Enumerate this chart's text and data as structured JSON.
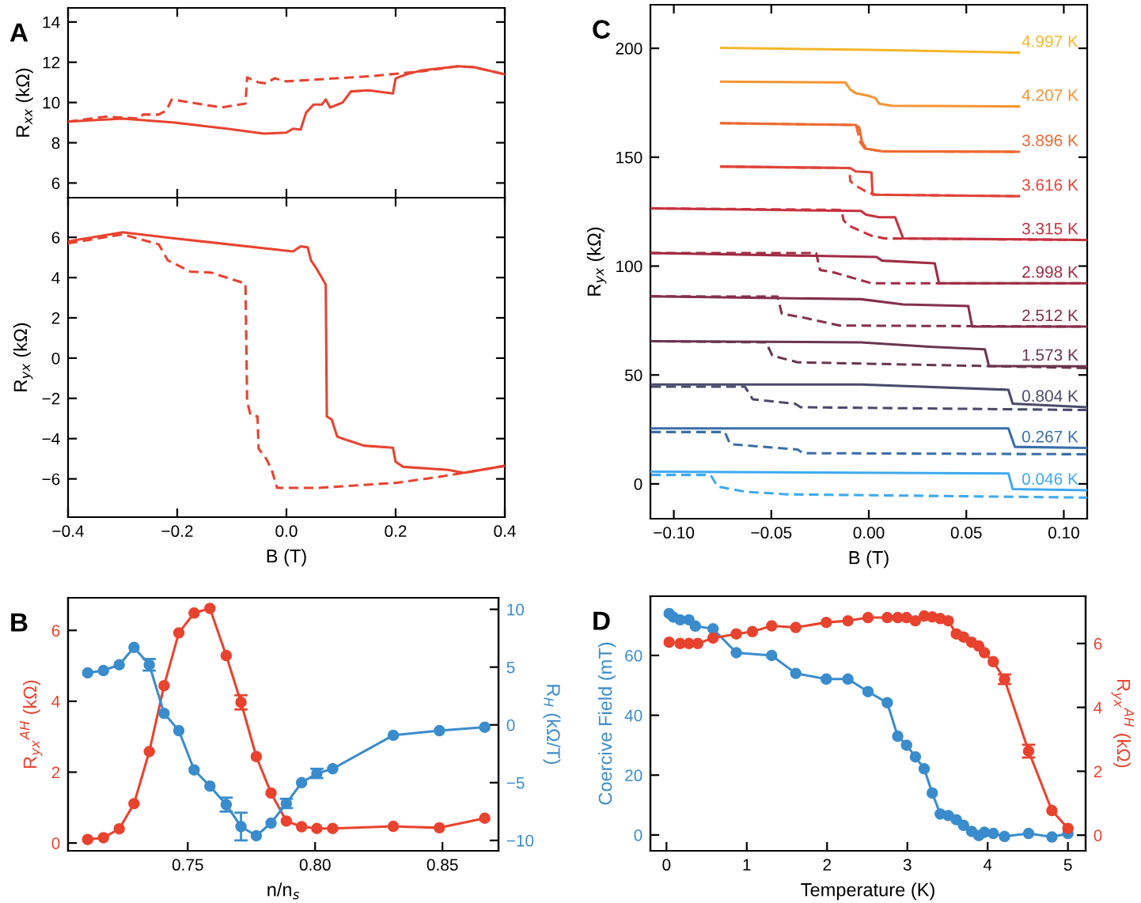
{
  "chart_data": [
    {
      "type": "line",
      "title": "A",
      "ylabel": "R$_{xx}$ (kΩ)",
      "tick_labels": "y",
      "xlim": [
        -0.4,
        0.4
      ],
      "xticks": [
        {
          "value": -0.4,
          "label": null
        },
        {
          "value": -0.2,
          "label": null
        },
        {
          "value": 0.0,
          "label": null
        },
        {
          "value": 0.2,
          "label": null
        },
        {
          "value": 0.4,
          "label": null
        }
      ],
      "ylim": [
        5.27,
        14.7
      ],
      "yticks": [
        6,
        8,
        10,
        12,
        14
      ],
      "series": [
        {
          "color": "#e8432f",
          "line_style": "solid",
          "x": [
            -0.4,
            -0.3,
            -0.205,
            -0.109,
            -0.041,
            0.0,
            0.012,
            0.026,
            0.036,
            0.05,
            0.065,
            0.072,
            0.08,
            0.103,
            0.118,
            0.151,
            0.195,
            0.2,
            0.22,
            0.248,
            0.315,
            0.344,
            0.4
          ],
          "values": [
            9.05,
            9.2,
            9.0,
            8.7,
            8.45,
            8.5,
            8.7,
            8.65,
            9.5,
            9.9,
            9.9,
            10.15,
            9.75,
            10.0,
            10.55,
            10.6,
            10.45,
            11.2,
            11.4,
            11.6,
            11.8,
            11.75,
            11.4
          ]
        },
        {
          "color": "#e8432f",
          "line_style": "dashed",
          "x": [
            -0.4,
            -0.33,
            -0.27,
            -0.263,
            -0.234,
            -0.22,
            -0.21,
            -0.176,
            -0.119,
            -0.075,
            -0.072,
            -0.051,
            -0.037,
            -0.022,
            0.0,
            0.151,
            0.248,
            0.315,
            0.344,
            0.4
          ],
          "values": [
            9.05,
            9.3,
            9.2,
            9.4,
            9.4,
            9.6,
            10.15,
            10.0,
            9.75,
            9.95,
            11.25,
            11.0,
            10.95,
            11.2,
            11.05,
            11.3,
            11.55,
            11.8,
            11.75,
            11.4
          ]
        }
      ]
    },
    {
      "type": "line",
      "xlabel": "B (T)",
      "ylabel": "R$_{yx}$ (kΩ)",
      "xlim": [
        -0.4,
        0.4
      ],
      "xticks": [
        {
          "value": -0.4,
          "label": "−0.4"
        },
        {
          "value": -0.2,
          "label": "−0.2"
        },
        {
          "value": 0.0,
          "label": "0.0"
        },
        {
          "value": 0.2,
          "label": "0.2"
        },
        {
          "value": 0.4,
          "label": "0.4"
        }
      ],
      "ylim": [
        -7.9,
        7.97
      ],
      "yticks": [
        {
          "value": -6,
          "label": "−6"
        },
        {
          "value": -4,
          "label": "−4"
        },
        {
          "value": -2,
          "label": "−2"
        },
        0,
        2,
        4,
        6
      ],
      "series": [
        {
          "color": "#e8432f",
          "line_style": "solid",
          "x": [
            -0.4,
            -0.3,
            -0.205,
            0.012,
            0.026,
            0.039,
            0.045,
            0.055,
            0.072,
            0.074,
            0.083,
            0.093,
            0.103,
            0.142,
            0.195,
            0.2,
            0.214,
            0.296,
            0.325,
            0.4
          ],
          "values": [
            5.8,
            6.25,
            5.95,
            5.3,
            5.55,
            5.5,
            4.85,
            4.45,
            3.65,
            -2.9,
            -3.05,
            -3.9,
            -4.0,
            -4.35,
            -4.45,
            -5.15,
            -5.4,
            -5.55,
            -5.7,
            -5.35
          ]
        },
        {
          "color": "#e8432f",
          "line_style": "dashed",
          "x": [
            -0.4,
            -0.3,
            -0.234,
            -0.217,
            -0.205,
            -0.176,
            -0.138,
            -0.075,
            -0.072,
            -0.066,
            -0.053,
            -0.051,
            -0.037,
            -0.027,
            -0.017,
            0.055,
            0.2,
            0.267,
            0.325,
            0.4
          ],
          "values": [
            5.7,
            6.15,
            5.65,
            4.85,
            4.7,
            4.3,
            4.25,
            3.7,
            -2.15,
            -2.8,
            -2.9,
            -4.5,
            -5.0,
            -5.55,
            -6.45,
            -6.45,
            -6.2,
            -5.95,
            -5.7,
            -5.35
          ]
        }
      ]
    },
    {
      "type": "line",
      "title": "C",
      "xlabel": "B (T)",
      "ylabel": "R$_{yx}$ (kΩ)",
      "xlim": [
        -0.112,
        0.112
      ],
      "xticks": [
        {
          "value": -0.1,
          "label": "−0.10"
        },
        {
          "value": -0.05,
          "label": "−0.05"
        },
        {
          "value": 0.0,
          "label": "0.00"
        },
        {
          "value": 0.05,
          "label": "0.05"
        },
        {
          "value": 0.1,
          "label": "0.10"
        }
      ],
      "ylim": [
        -16,
        220
      ],
      "yticks": [
        0,
        50,
        100,
        150,
        200
      ],
      "series": [
        {
          "name": "4.997 K",
          "color": "#f5b62a",
          "line_style": "solid",
          "x": [
            -0.0757,
            0.0,
            0.077
          ],
          "values": [
            200.2,
            199.3,
            198.0
          ]
        },
        {
          "name": "4.207 K",
          "color": "#f59331",
          "line_style": "solid",
          "x": [
            -0.0757,
            -0.012,
            -0.0095,
            -0.0068,
            0.0,
            0.0035,
            0.0054,
            0.012,
            0.077
          ],
          "values": [
            184.7,
            184.3,
            181.1,
            179.4,
            178.2,
            177.0,
            174.5,
            173.6,
            173.3
          ]
        },
        {
          "name": "3.896 K",
          "color": "#ee6a33",
          "line_style": "solid",
          "x": [
            -0.0757,
            -0.0068,
            -0.0049,
            -0.0035,
            -0.0014,
            0.0068,
            0.077
          ],
          "values": [
            165.6,
            164.8,
            163.6,
            157.1,
            153.9,
            152.7,
            152.5
          ]
        },
        {
          "color": "#ee6a33",
          "line_style": "dashed",
          "x": [
            -0.0757,
            -0.008,
            -0.0062,
            -0.0045,
            -0.002,
            0.0068,
            0.077
          ],
          "values": [
            165.6,
            164.8,
            163.6,
            157.0,
            153.9,
            152.7,
            152.5
          ]
        },
        {
          "name": "3.616 K",
          "color": "#e0453a",
          "line_style": "solid",
          "x": [
            -0.0757,
            -0.0095,
            -0.0068,
            0.0014,
            0.0019,
            0.077
          ],
          "values": [
            145.7,
            145.0,
            143.5,
            143.0,
            132.8,
            132.1
          ]
        },
        {
          "color": "#e0453a",
          "line_style": "dashed",
          "x": [
            -0.0757,
            -0.01,
            -0.0095,
            -0.0068,
            0.0,
            0.004,
            0.077
          ],
          "values": [
            145.7,
            145.0,
            139.0,
            137.0,
            133.5,
            132.8,
            132.1
          ]
        },
        {
          "name": "3.315 K",
          "color": "#c7323f",
          "line_style": "solid",
          "x": [
            -0.1116,
            -0.004,
            -0.0014,
            0.0054,
            0.0135,
            0.0176,
            0.112
          ],
          "values": [
            126.5,
            125.3,
            123.6,
            122.4,
            122.4,
            112.7,
            112.0
          ]
        },
        {
          "color": "#c7323f",
          "line_style": "dashed",
          "x": [
            -0.1116,
            -0.014,
            -0.013,
            -0.0108,
            0.0014,
            0.008,
            0.112
          ],
          "values": [
            126.5,
            125.8,
            121.2,
            118.8,
            113.9,
            112.7,
            112.0
          ]
        },
        {
          "name": "2.998 K",
          "color": "#a02c44",
          "line_style": "solid",
          "x": [
            -0.1116,
            0.004,
            0.0068,
            0.0338,
            0.036,
            0.112
          ],
          "values": [
            106.0,
            104.2,
            102.5,
            101.3,
            92.1,
            92.1
          ]
        },
        {
          "color": "#a02c44",
          "line_style": "dashed",
          "x": [
            -0.1116,
            -0.027,
            -0.025,
            -0.0176,
            0.0014,
            0.112
          ],
          "values": [
            106.0,
            106.0,
            98.2,
            97.0,
            92.1,
            92.1
          ]
        },
        {
          "name": "2.512 K",
          "color": "#84304a",
          "line_style": "solid",
          "x": [
            -0.1116,
            -0.004,
            0.0176,
            0.051,
            0.053,
            0.112
          ],
          "values": [
            86.1,
            84.8,
            82.4,
            81.7,
            72.2,
            72.2
          ]
        },
        {
          "color": "#84304a",
          "line_style": "dashed",
          "x": [
            -0.1116,
            -0.0468,
            -0.0446,
            -0.0338,
            -0.0149,
            0.112
          ],
          "values": [
            86.1,
            86.0,
            78.1,
            76.4,
            72.7,
            72.2
          ]
        },
        {
          "name": "1.573 K",
          "color": "#6a3550",
          "line_style": "solid",
          "x": [
            -0.1116,
            -0.004,
            0.031,
            0.0595,
            0.0616,
            0.112
          ],
          "values": [
            65.5,
            65.0,
            63.0,
            61.8,
            54.1,
            54.0
          ]
        },
        {
          "color": "#6a3550",
          "line_style": "dashed",
          "x": [
            -0.1116,
            -0.0527,
            -0.0495,
            -0.0365,
            0.112
          ],
          "values": [
            65.5,
            65.0,
            58.9,
            55.8,
            53.2
          ]
        },
        {
          "name": "0.804 K",
          "color": "#4b4a6c",
          "line_style": "solid",
          "x": [
            -0.1116,
            -0.004,
            0.0716,
            0.0738,
            0.112
          ],
          "values": [
            45.6,
            45.6,
            43.2,
            36.8,
            35.2
          ]
        },
        {
          "color": "#4b4a6c",
          "line_style": "dashed",
          "x": [
            -0.1116,
            -0.0635,
            -0.0595,
            -0.0378,
            -0.035,
            0.112
          ],
          "values": [
            44.6,
            44.6,
            38.8,
            36.8,
            35.2,
            33.9
          ]
        },
        {
          "name": "0.267 K",
          "color": "#3a6fa8",
          "line_style": "solid",
          "x": [
            -0.1116,
            0.0716,
            0.0749,
            0.112
          ],
          "values": [
            25.5,
            25.5,
            17.0,
            16.5
          ]
        },
        {
          "color": "#3a6fa8",
          "line_style": "dashed",
          "x": [
            -0.1116,
            -0.0738,
            -0.0711,
            -0.0365,
            -0.0338,
            0.112
          ],
          "values": [
            23.8,
            23.8,
            18.2,
            15.8,
            14.1,
            13.6
          ]
        },
        {
          "name": "0.046 K",
          "color": "#3ea9f0",
          "line_style": "solid",
          "x": [
            -0.1116,
            0.0716,
            0.0738,
            0.112
          ],
          "values": [
            5.6,
            4.8,
            -2.4,
            -2.9
          ]
        },
        {
          "color": "#3ea9f0",
          "line_style": "dashed",
          "x": [
            -0.1116,
            -0.0811,
            -0.0776,
            -0.0635,
            -0.0419,
            0.112
          ],
          "values": [
            4.1,
            4.1,
            -1.2,
            -3.6,
            -4.8,
            -6.3
          ]
        }
      ]
    },
    {
      "type": "line",
      "title": "B",
      "xlabel": "n/n$_{s}$",
      "ylabel": "R$_{yx}$$^{AH}$ (kΩ)",
      "y2label": "R$_{H}$ (kΩ/T)",
      "marker": "circle",
      "xlim": [
        0.703,
        0.872
      ],
      "xticks": [
        0.75,
        {
          "value": 0.8,
          "label": "0.80"
        },
        0.85
      ],
      "ylim": [
        -0.22,
        6.92
      ],
      "yticks": [
        0,
        2,
        4,
        6
      ],
      "y2lim": [
        -10.9,
        11.0
      ],
      "y2ticks": [
        {
          "value": -10,
          "label": "−10"
        },
        {
          "value": -5,
          "label": "−5"
        },
        0,
        5,
        10
      ],
      "x": [
        0.7107,
        0.7169,
        0.7231,
        0.7289,
        0.7349,
        0.7407,
        0.7465,
        0.7525,
        0.7587,
        0.7651,
        0.7709,
        0.7769,
        0.7827,
        0.7887,
        0.7947,
        0.8007,
        0.8069,
        0.8307,
        0.8488,
        0.8666
      ],
      "series": [
        {
          "color": "#e8432f",
          "line_style": "solid",
          "values": [
            0.1,
            0.15,
            0.4,
            1.11,
            2.58,
            4.44,
            5.93,
            6.49,
            6.62,
            5.29,
            3.97,
            2.44,
            1.41,
            0.62,
            0.46,
            0.41,
            0.41,
            0.47,
            0.43,
            0.7
          ],
          "errors": [
            null,
            null,
            null,
            null,
            null,
            null,
            null,
            null,
            null,
            null,
            0.2,
            null,
            null,
            null,
            null,
            null,
            null,
            null,
            null,
            null
          ]
        },
        {
          "color": "#3a8ccc",
          "line_style": "solid",
          "axis": "y2",
          "values": [
            4.5,
            4.7,
            5.2,
            6.7,
            5.2,
            1.0,
            -0.5,
            -3.9,
            -5.3,
            -6.9,
            -8.8,
            -9.6,
            -8.5,
            -6.8,
            -5.0,
            -4.2,
            -3.8,
            -0.9,
            -0.5,
            -0.2
          ],
          "errors": [
            null,
            null,
            null,
            null,
            0.5,
            null,
            null,
            null,
            null,
            0.6,
            1.2,
            null,
            null,
            0.4,
            null,
            0.4,
            null,
            null,
            null,
            null
          ]
        }
      ]
    },
    {
      "type": "line",
      "title": "D",
      "xlabel": "Temperature (K)",
      "ylabel": "Coercive Field (mT)",
      "y2label": "R$_{yx}$$^{AH}$ (kΩ)",
      "marker": "circle",
      "xlim": [
        -0.2,
        5.22
      ],
      "xticks": [
        0,
        1,
        2,
        3,
        4,
        5
      ],
      "ylim": [
        -5.3,
        79.8
      ],
      "yticks": [
        0,
        20,
        40,
        60
      ],
      "y2lim": [
        -0.49,
        7.48
      ],
      "y2ticks": [
        0,
        2,
        4,
        6
      ],
      "series": [
        {
          "color": "#3a8ccc",
          "line_style": "solid",
          "x": [
            0.033,
            0.085,
            0.17,
            0.28,
            0.36,
            0.58,
            0.87,
            1.31,
            1.61,
            1.99,
            2.26,
            2.51,
            2.75,
            2.88,
            2.99,
            3.1,
            3.21,
            3.31,
            3.41,
            3.51,
            3.61,
            3.7,
            3.8,
            3.89,
            3.96,
            4.07,
            4.21,
            4.51,
            4.8,
            5.0
          ],
          "values": [
            74.0,
            72.8,
            71.9,
            71.9,
            69.8,
            68.9,
            60.9,
            60.0,
            54.0,
            52.1,
            52.1,
            47.9,
            44.2,
            33.0,
            30.0,
            26.1,
            22.1,
            14.0,
            7.0,
            6.5,
            5.1,
            3.2,
            1.2,
            -0.2,
            0.9,
            0.5,
            -0.5,
            0.5,
            -0.7,
            0.5
          ]
        },
        {
          "color": "#e8432f",
          "line_style": "solid",
          "axis": "y2",
          "x": [
            0.033,
            0.17,
            0.28,
            0.39,
            0.58,
            0.87,
            1.07,
            1.31,
            1.61,
            1.99,
            2.26,
            2.51,
            2.75,
            2.88,
            2.99,
            3.1,
            3.21,
            3.31,
            3.41,
            3.51,
            3.61,
            3.7,
            3.8,
            3.89,
            3.96,
            4.07,
            4.21,
            4.51,
            4.8,
            5.0
          ],
          "values": [
            6.04,
            6.0,
            6.0,
            6.0,
            6.17,
            6.3,
            6.37,
            6.55,
            6.5,
            6.66,
            6.71,
            6.81,
            6.81,
            6.81,
            6.81,
            6.71,
            6.86,
            6.83,
            6.78,
            6.71,
            6.3,
            6.2,
            6.04,
            5.92,
            5.71,
            5.43,
            4.88,
            2.63,
            0.77,
            0.21
          ],
          "errors": [
            null,
            null,
            null,
            null,
            null,
            null,
            null,
            null,
            null,
            null,
            null,
            null,
            null,
            null,
            null,
            null,
            null,
            null,
            null,
            null,
            null,
            null,
            null,
            null,
            null,
            null,
            0.15,
            0.2,
            null,
            null
          ]
        }
      ]
    }
  ]
}
